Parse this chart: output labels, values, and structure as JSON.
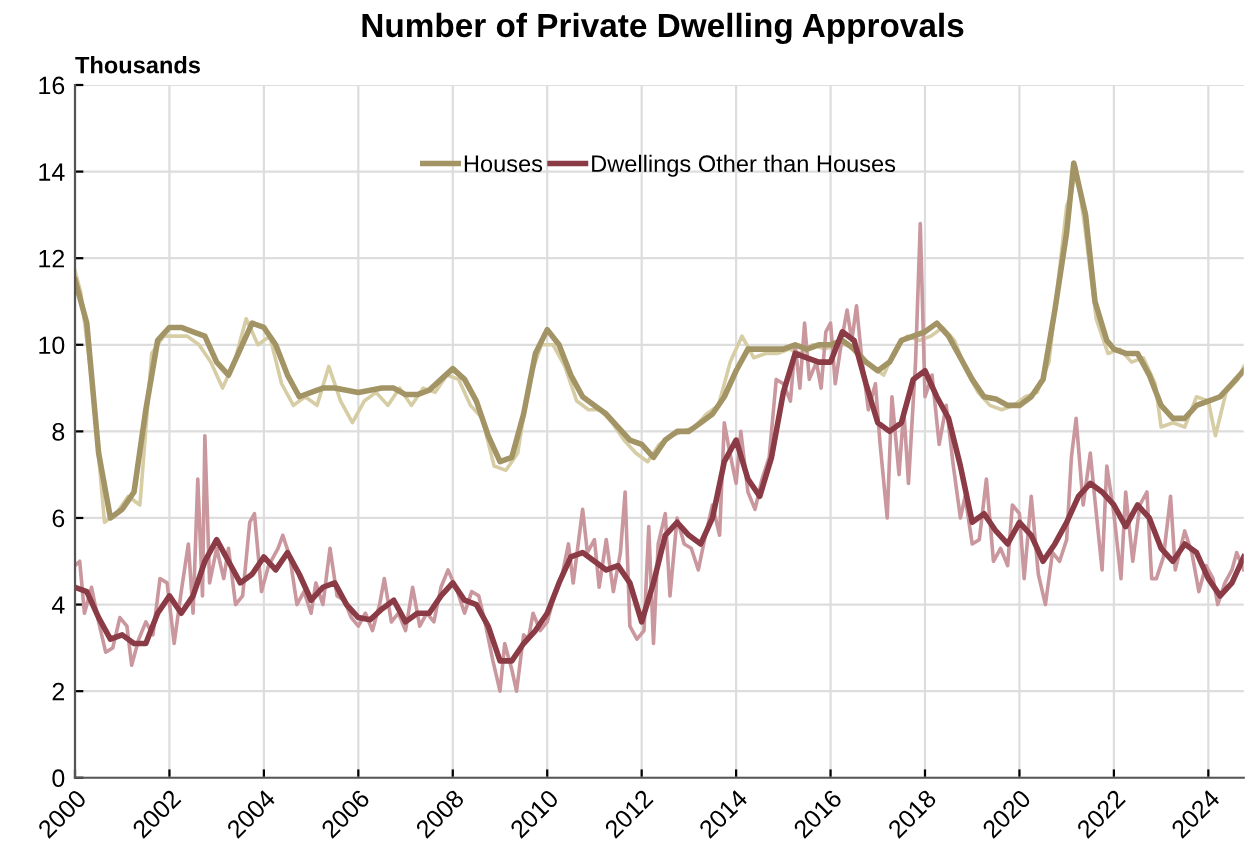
{
  "chart_data": {
    "type": "line",
    "title": "Number of Private Dwelling Approvals",
    "ylabel": "Thousands",
    "xlim": [
      2000,
      2024.75
    ],
    "xticks": [
      2000,
      2002,
      2004,
      2006,
      2008,
      2010,
      2012,
      2014,
      2016,
      2018,
      2020,
      2022,
      2024
    ],
    "ylim": [
      0,
      16
    ],
    "yticks": [
      0,
      2,
      4,
      6,
      8,
      10,
      12,
      14,
      16
    ],
    "grid": true,
    "legend": "top",
    "marker": "none",
    "line_style": "solid",
    "series": [
      {
        "color": "#d6cda4",
        "x": [
          2000.0,
          2000.125,
          2000.375,
          2000.625,
          2000.875,
          2001.125,
          2001.375,
          2001.625,
          2001.875,
          2002.125,
          2002.375,
          2002.625,
          2002.875,
          2003.125,
          2003.375,
          2003.625,
          2003.875,
          2004.125,
          2004.375,
          2004.625,
          2004.875,
          2005.125,
          2005.375,
          2005.625,
          2005.875,
          2006.125,
          2006.375,
          2006.625,
          2006.875,
          2007.125,
          2007.375,
          2007.625,
          2007.875,
          2008.125,
          2008.375,
          2008.625,
          2008.875,
          2009.125,
          2009.375,
          2009.625,
          2009.875,
          2010.125,
          2010.375,
          2010.625,
          2010.875,
          2011.125,
          2011.375,
          2011.625,
          2011.875,
          2012.125,
          2012.375,
          2012.625,
          2012.875,
          2013.125,
          2013.375,
          2013.625,
          2013.875,
          2014.125,
          2014.375,
          2014.625,
          2014.875,
          2015.125,
          2015.375,
          2015.625,
          2015.875,
          2016.125,
          2016.375,
          2016.625,
          2016.875,
          2017.125,
          2017.375,
          2017.625,
          2017.875,
          2018.125,
          2018.375,
          2018.625,
          2018.875,
          2019.125,
          2019.375,
          2019.625,
          2019.875,
          2020.125,
          2020.375,
          2020.625,
          2020.875,
          2021.0,
          2021.1,
          2021.2,
          2021.375,
          2021.625,
          2021.875,
          2022.125,
          2022.375,
          2022.625,
          2022.875,
          2023.0,
          2023.25,
          2023.5,
          2023.75,
          2024.0,
          2024.15,
          2024.375,
          2024.625,
          2024.75
        ],
        "values": [
          11.7,
          11.2,
          9.0,
          5.9,
          6.1,
          6.5,
          6.3,
          9.8,
          10.2,
          10.2,
          10.2,
          10.0,
          9.6,
          9.0,
          9.6,
          10.6,
          10.0,
          10.2,
          9.1,
          8.6,
          8.8,
          8.6,
          9.5,
          8.7,
          8.2,
          8.7,
          8.9,
          8.6,
          9.0,
          8.6,
          9.0,
          8.9,
          9.3,
          9.2,
          8.6,
          8.3,
          7.2,
          7.1,
          7.5,
          9.2,
          10.0,
          10.0,
          9.5,
          8.7,
          8.5,
          8.5,
          8.2,
          7.8,
          7.5,
          7.3,
          7.7,
          7.9,
          8.0,
          8.1,
          8.4,
          8.6,
          9.6,
          10.2,
          9.7,
          9.8,
          9.8,
          9.9,
          9.8,
          10.0,
          9.9,
          10.0,
          10.0,
          9.7,
          9.5,
          9.3,
          9.9,
          10.2,
          10.1,
          10.2,
          10.4,
          10.1,
          9.4,
          8.9,
          8.6,
          8.5,
          8.6,
          8.8,
          8.9,
          9.6,
          12.0,
          13.2,
          13.5,
          14.1,
          12.8,
          10.6,
          9.8,
          9.9,
          9.6,
          9.7,
          9.1,
          8.1,
          8.2,
          8.1,
          8.8,
          8.7,
          7.9,
          8.9,
          9.2,
          9.5
        ]
      },
      {
        "color": "#c9979d",
        "x": [
          2000.0,
          2000.1,
          2000.2,
          2000.35,
          2000.5,
          2000.65,
          2000.8,
          2000.95,
          2001.1,
          2001.2,
          2001.35,
          2001.5,
          2001.65,
          2001.8,
          2001.95,
          2002.1,
          2002.25,
          2002.4,
          2002.5,
          2002.6,
          2002.7,
          2002.75,
          2002.85,
          2003.0,
          2003.15,
          2003.25,
          2003.4,
          2003.55,
          2003.7,
          2003.8,
          2003.95,
          2004.1,
          2004.3,
          2004.4,
          2004.55,
          2004.7,
          2004.85,
          2005.0,
          2005.1,
          2005.25,
          2005.4,
          2005.55,
          2005.7,
          2005.85,
          2006.0,
          2006.15,
          2006.3,
          2006.45,
          2006.55,
          2006.7,
          2006.85,
          2007.0,
          2007.15,
          2007.3,
          2007.45,
          2007.6,
          2007.75,
          2007.9,
          2008.1,
          2008.25,
          2008.4,
          2008.55,
          2008.7,
          2008.85,
          2009.0,
          2009.1,
          2009.25,
          2009.35,
          2009.5,
          2009.6,
          2009.7,
          2009.85,
          2010.0,
          2010.15,
          2010.3,
          2010.45,
          2010.55,
          2010.75,
          2010.85,
          2011.0,
          2011.1,
          2011.25,
          2011.4,
          2011.55,
          2011.65,
          2011.75,
          2011.9,
          2012.05,
          2012.15,
          2012.25,
          2012.35,
          2012.5,
          2012.6,
          2012.75,
          2012.9,
          2013.05,
          2013.2,
          2013.35,
          2013.5,
          2013.65,
          2013.75,
          2013.85,
          2014.0,
          2014.1,
          2014.25,
          2014.4,
          2014.55,
          2014.7,
          2014.85,
          2015.0,
          2015.15,
          2015.25,
          2015.35,
          2015.45,
          2015.55,
          2015.7,
          2015.8,
          2015.9,
          2016.0,
          2016.1,
          2016.25,
          2016.35,
          2016.45,
          2016.55,
          2016.65,
          2016.8,
          2016.95,
          2017.05,
          2017.2,
          2017.3,
          2017.45,
          2017.55,
          2017.65,
          2017.8,
          2017.9,
          2018.0,
          2018.15,
          2018.3,
          2018.45,
          2018.6,
          2018.75,
          2018.85,
          2019.0,
          2019.15,
          2019.3,
          2019.45,
          2019.6,
          2019.75,
          2019.85,
          2020.0,
          2020.1,
          2020.25,
          2020.4,
          2020.55,
          2020.7,
          2020.85,
          2021.0,
          2021.1,
          2021.2,
          2021.35,
          2021.5,
          2021.6,
          2021.75,
          2021.85,
          2022.0,
          2022.15,
          2022.25,
          2022.4,
          2022.55,
          2022.7,
          2022.8,
          2022.9,
          2023.05,
          2023.2,
          2023.3,
          2023.5,
          2023.65,
          2023.8,
          2023.95,
          2024.1,
          2024.2,
          2024.35,
          2024.5,
          2024.6,
          2024.75
        ],
        "values": [
          4.9,
          5.0,
          3.8,
          4.4,
          3.6,
          2.9,
          3.0,
          3.7,
          3.5,
          2.6,
          3.2,
          3.6,
          3.3,
          4.6,
          4.5,
          3.1,
          4.3,
          5.4,
          3.8,
          6.9,
          4.2,
          7.9,
          4.5,
          5.3,
          4.6,
          5.3,
          4.0,
          4.2,
          5.9,
          6.1,
          4.3,
          4.9,
          5.3,
          5.6,
          5.1,
          4.0,
          4.3,
          3.8,
          4.5,
          4.0,
          5.3,
          4.2,
          4.1,
          3.7,
          3.5,
          3.8,
          3.4,
          4.0,
          4.6,
          3.6,
          3.8,
          3.4,
          4.4,
          3.5,
          3.8,
          3.6,
          4.4,
          4.8,
          4.3,
          3.8,
          4.3,
          4.2,
          3.5,
          2.7,
          2.0,
          3.1,
          2.5,
          2.0,
          3.3,
          3.2,
          3.8,
          3.4,
          3.6,
          4.2,
          4.6,
          5.4,
          4.5,
          6.2,
          5.2,
          5.5,
          4.4,
          5.5,
          4.3,
          5.2,
          6.6,
          3.5,
          3.2,
          3.4,
          5.8,
          3.1,
          5.4,
          6.1,
          4.2,
          6.0,
          5.4,
          5.3,
          4.8,
          5.6,
          6.3,
          5.6,
          8.2,
          7.6,
          6.8,
          8.0,
          6.6,
          6.2,
          6.9,
          7.4,
          9.2,
          9.1,
          8.7,
          10.0,
          9.0,
          10.5,
          9.2,
          9.6,
          9.0,
          10.3,
          10.5,
          9.1,
          10.2,
          10.8,
          10.1,
          10.9,
          9.8,
          8.5,
          9.1,
          7.7,
          6.0,
          8.8,
          7.0,
          8.5,
          6.8,
          9.6,
          12.8,
          8.8,
          9.3,
          7.7,
          8.6,
          7.2,
          6.0,
          6.5,
          5.4,
          5.5,
          6.9,
          5.0,
          5.3,
          4.9,
          6.3,
          6.1,
          4.6,
          6.5,
          4.7,
          4.0,
          5.2,
          5.0,
          5.5,
          7.4,
          8.3,
          6.3,
          7.5,
          6.4,
          4.8,
          7.2,
          6.1,
          4.6,
          6.6,
          5.0,
          6.3,
          6.6,
          4.6,
          4.6,
          5.1,
          6.5,
          4.8,
          5.7,
          5.2,
          4.3,
          4.9,
          4.6,
          4.0,
          4.5,
          4.8,
          5.2,
          4.8
        ]
      },
      {
        "name": "Houses",
        "color": "#a39465",
        "x": [
          2000.0,
          2000.25,
          2000.5,
          2000.75,
          2001.0,
          2001.25,
          2001.5,
          2001.75,
          2002.0,
          2002.25,
          2002.5,
          2002.75,
          2003.0,
          2003.25,
          2003.5,
          2003.75,
          2004.0,
          2004.25,
          2004.5,
          2004.75,
          2005.0,
          2005.25,
          2005.5,
          2005.75,
          2006.0,
          2006.25,
          2006.5,
          2006.75,
          2007.0,
          2007.25,
          2007.5,
          2007.75,
          2008.0,
          2008.25,
          2008.5,
          2008.75,
          2009.0,
          2009.25,
          2009.5,
          2009.75,
          2010.0,
          2010.25,
          2010.5,
          2010.75,
          2011.0,
          2011.25,
          2011.5,
          2011.75,
          2012.0,
          2012.25,
          2012.5,
          2012.75,
          2013.0,
          2013.25,
          2013.5,
          2013.75,
          2014.0,
          2014.25,
          2014.5,
          2014.75,
          2015.0,
          2015.25,
          2015.5,
          2015.75,
          2016.0,
          2016.25,
          2016.5,
          2016.75,
          2017.0,
          2017.25,
          2017.5,
          2017.75,
          2018.0,
          2018.25,
          2018.5,
          2018.75,
          2019.0,
          2019.25,
          2019.5,
          2019.75,
          2020.0,
          2020.25,
          2020.5,
          2020.75,
          2021.0,
          2021.15,
          2021.4,
          2021.6,
          2021.85,
          2022.0,
          2022.25,
          2022.5,
          2022.75,
          2023.0,
          2023.25,
          2023.5,
          2023.75,
          2024.0,
          2024.25,
          2024.5,
          2024.75
        ],
        "values": [
          11.5,
          10.5,
          7.5,
          6.0,
          6.2,
          6.6,
          8.5,
          10.1,
          10.4,
          10.4,
          10.3,
          10.2,
          9.6,
          9.3,
          9.9,
          10.5,
          10.4,
          10.0,
          9.3,
          8.8,
          8.9,
          9.0,
          9.0,
          8.95,
          8.9,
          8.95,
          9.0,
          9.0,
          8.85,
          8.85,
          8.95,
          9.2,
          9.45,
          9.2,
          8.7,
          7.9,
          7.3,
          7.4,
          8.4,
          9.8,
          10.35,
          10.0,
          9.3,
          8.8,
          8.6,
          8.4,
          8.1,
          7.8,
          7.7,
          7.4,
          7.8,
          8.0,
          8.0,
          8.2,
          8.4,
          8.8,
          9.4,
          9.9,
          9.9,
          9.9,
          9.9,
          10.0,
          9.9,
          10.0,
          10.0,
          10.1,
          9.9,
          9.6,
          9.4,
          9.6,
          10.1,
          10.2,
          10.3,
          10.5,
          10.2,
          9.7,
          9.2,
          8.8,
          8.75,
          8.6,
          8.6,
          8.8,
          9.2,
          10.8,
          12.6,
          14.2,
          13.0,
          11.0,
          10.1,
          9.9,
          9.8,
          9.8,
          9.3,
          8.6,
          8.3,
          8.3,
          8.6,
          8.7,
          8.8,
          9.1,
          9.4
        ]
      },
      {
        "name": "Dwellings Other than Houses",
        "color": "#8a3b45",
        "x": [
          2000.0,
          2000.25,
          2000.5,
          2000.75,
          2001.0,
          2001.25,
          2001.5,
          2001.75,
          2002.0,
          2002.25,
          2002.5,
          2002.75,
          2003.0,
          2003.25,
          2003.5,
          2003.75,
          2004.0,
          2004.25,
          2004.5,
          2004.75,
          2005.0,
          2005.25,
          2005.5,
          2005.75,
          2006.0,
          2006.25,
          2006.5,
          2006.75,
          2007.0,
          2007.25,
          2007.5,
          2007.75,
          2008.0,
          2008.25,
          2008.5,
          2008.75,
          2009.0,
          2009.25,
          2009.5,
          2009.75,
          2010.0,
          2010.25,
          2010.5,
          2010.75,
          2011.0,
          2011.25,
          2011.5,
          2011.75,
          2012.0,
          2012.25,
          2012.5,
          2012.75,
          2013.0,
          2013.25,
          2013.5,
          2013.75,
          2014.0,
          2014.25,
          2014.5,
          2014.75,
          2015.0,
          2015.25,
          2015.5,
          2015.75,
          2016.0,
          2016.25,
          2016.5,
          2016.75,
          2017.0,
          2017.25,
          2017.5,
          2017.75,
          2018.0,
          2018.25,
          2018.5,
          2018.75,
          2019.0,
          2019.25,
          2019.5,
          2019.75,
          2020.0,
          2020.25,
          2020.5,
          2020.75,
          2021.0,
          2021.25,
          2021.5,
          2021.75,
          2022.0,
          2022.25,
          2022.5,
          2022.75,
          2023.0,
          2023.25,
          2023.5,
          2023.75,
          2024.0,
          2024.25,
          2024.5,
          2024.75
        ],
        "values": [
          4.4,
          4.3,
          3.7,
          3.2,
          3.3,
          3.1,
          3.1,
          3.8,
          4.2,
          3.8,
          4.2,
          5.0,
          5.5,
          5.0,
          4.5,
          4.7,
          5.1,
          4.8,
          5.2,
          4.7,
          4.1,
          4.4,
          4.5,
          4.0,
          3.7,
          3.65,
          3.9,
          4.1,
          3.6,
          3.8,
          3.8,
          4.2,
          4.5,
          4.1,
          4.0,
          3.5,
          2.7,
          2.7,
          3.1,
          3.4,
          3.8,
          4.5,
          5.1,
          5.2,
          5.0,
          4.8,
          4.9,
          4.5,
          3.6,
          4.5,
          5.6,
          5.9,
          5.6,
          5.4,
          6.0,
          7.3,
          7.8,
          6.9,
          6.5,
          7.4,
          8.9,
          9.8,
          9.7,
          9.6,
          9.6,
          10.3,
          10.1,
          9.1,
          8.2,
          8.0,
          8.2,
          9.2,
          9.4,
          8.8,
          8.3,
          7.2,
          5.9,
          6.1,
          5.7,
          5.4,
          5.9,
          5.6,
          5.0,
          5.4,
          5.9,
          6.5,
          6.8,
          6.6,
          6.3,
          5.8,
          6.3,
          6.0,
          5.3,
          5.0,
          5.4,
          5.2,
          4.6,
          4.2,
          4.5,
          5.1
        ]
      }
    ]
  }
}
